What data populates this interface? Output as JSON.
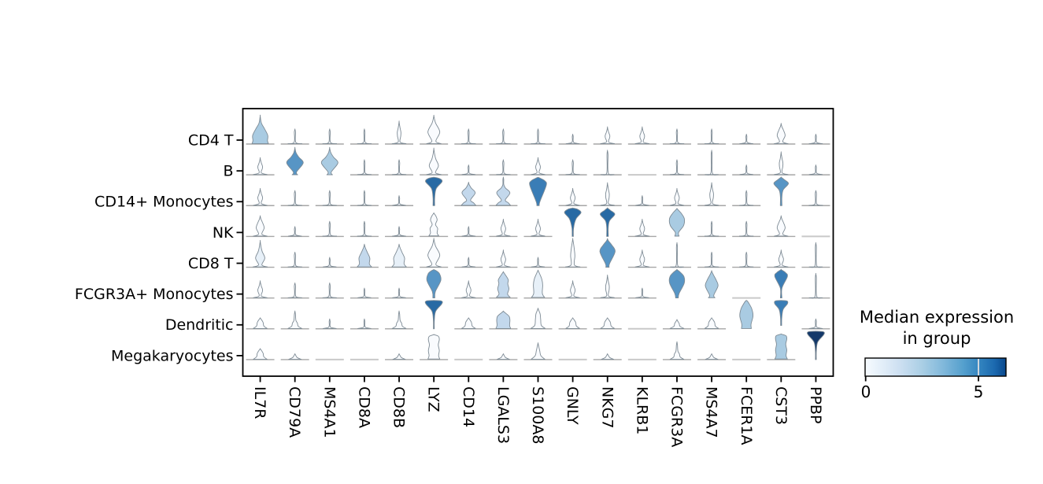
{
  "figure_title": "",
  "rows": [
    "CD4 T",
    "B",
    "CD14+ Monocytes",
    "NK",
    "CD8 T",
    "FCGR3A+ Monocytes",
    "Dendritic",
    "Megakaryocytes"
  ],
  "genes": [
    "IL7R",
    "CD79A",
    "MS4A1",
    "CD8A",
    "CD8B",
    "LYZ",
    "CD14",
    "LGALS3",
    "S100A8",
    "GNLY",
    "NKG7",
    "KLRB1",
    "FCGR3A",
    "MS4A7",
    "FCER1A",
    "CST3",
    "PPBP"
  ],
  "colorbar": {
    "title_line1": "Median expression",
    "title_line2": "in group",
    "tick_labels": [
      "0",
      "5"
    ],
    "min": 0,
    "max": 6.2,
    "shown_tick_value": 5,
    "colormap": "Blues"
  },
  "palette": {
    "L0": "#f9fbfe",
    "L1": "#e7f0f8",
    "L2": "#c3d8ec",
    "L3": "#a9cbe2",
    "L4": "#7fb2d6",
    "L5": "#5795c5",
    "L6": "#3a7db6",
    "L7": "#286aa4",
    "L8": "#14396a",
    "violin_stroke": "#7d8a94",
    "baseline_gray": "#a6a6a6",
    "flat_gray": "#c9c9c9"
  },
  "cells": [
    [
      "onionBig:3",
      "thin:0",
      "thin:0",
      "thin:0",
      "lensN:0",
      "diaW:0",
      "thin:0",
      "thin:0",
      "thin:0",
      "thinS:0",
      "lensS:0",
      "lensS:0",
      "thin:0",
      "thin:0",
      "thinS:0",
      "diaS:0",
      "thinS:0"
    ],
    [
      "lensS:0",
      "dia:5",
      "dia:3",
      "thin:0",
      "thin:0",
      "diaTallW:0",
      "thinS:0",
      "thin:0",
      "lensS:0",
      "thin:0",
      "thinT:0",
      "flat:0",
      "thin:0",
      "thinT:0",
      "thinS:0",
      "lensN:0",
      "thinS:0"
    ],
    [
      "lensS:0",
      "thin:0",
      "thin:0",
      "thin:0",
      "thinS:0",
      "fanHi:7",
      "dblDia:2",
      "dblDiaS:2",
      "fanBig:6",
      "lensS:0",
      "lensN:0",
      "thinS:0",
      "lensS:0",
      "lensN:0",
      "thin:0",
      "diaHi:5",
      "thin:0"
    ],
    [
      "diaS:0",
      "thinS:0",
      "thin:0",
      "thin:0",
      "thinS:0",
      "bubbleW:0",
      "thinS:0",
      "lensS:0",
      "lensS:0",
      "fanTail:7",
      "diaHi:7",
      "lensS:0",
      "mushroom:3",
      "thin:0",
      "thin:0",
      "diaS:0",
      "flat:0"
    ],
    [
      "diaTallW:1",
      "thin:0",
      "thinS:0",
      "onionP:2",
      "onionP:1",
      "diaW:0",
      "thinS:0",
      "lensS:0",
      "thinS:0",
      "tallNarW:0",
      "kite:5",
      "lensS:0",
      "thinT:0",
      "thin:0",
      "thin:0",
      "lensS:0",
      "thinT:0"
    ],
    [
      "lensS:0",
      "thin:0",
      "thin:0",
      "thinS:0",
      "thinS:0",
      "roundKiteHi:5",
      "lensS:0",
      "lumpy:2",
      "tallRound:1",
      "lensS:0",
      "lensN:0",
      "thinS:0",
      "fanMush:5",
      "oniDia:3",
      "flat:0",
      "diaTop:6",
      "thinT:0"
    ],
    [
      "bump:0",
      "bumpSpike:0",
      "thinS:0",
      "thinS:0",
      "bumpSpike:0",
      "funnelTop:7",
      "bump:0",
      "wideBlock:2",
      "chimney:0",
      "bump:0",
      "bump:0",
      "flat:0",
      "bumpS:0",
      "bump:0",
      "bigOnion:3",
      "funnelTopS:6",
      "thinS:0"
    ],
    [
      "bump:0",
      "tinyBump:0",
      "flat:0",
      "flat:0",
      "tinyBump:0",
      "tallBlockW:0",
      "flat:0",
      "tinyBump:0",
      "triBump:0",
      "flat:0",
      "tinyBump:0",
      "flat:0",
      "bumpSpike:0",
      "tinyBump:0",
      "flat:0",
      "tallBlock:3",
      "funnelTop:8"
    ]
  ],
  "chart_data": {
    "type": "heatmap",
    "plot_style": "stacked_violin",
    "title": "",
    "xlabel": "",
    "ylabel": "",
    "rows": [
      "CD4 T",
      "B",
      "CD14+ Monocytes",
      "NK",
      "CD8 T",
      "FCGR3A+ Monocytes",
      "Dendritic",
      "Megakaryocytes"
    ],
    "columns": [
      "IL7R",
      "CD79A",
      "MS4A1",
      "CD8A",
      "CD8B",
      "LYZ",
      "CD14",
      "LGALS3",
      "S100A8",
      "GNLY",
      "NKG7",
      "KLRB1",
      "FCGR3A",
      "MS4A7",
      "FCER1A",
      "CST3",
      "PPBP"
    ],
    "values_median_expression": [
      [
        1.7,
        0,
        0,
        0,
        0,
        0,
        0,
        0,
        0,
        0,
        0,
        0,
        0,
        0,
        0,
        0,
        0
      ],
      [
        0,
        3.2,
        1.7,
        0,
        0,
        0,
        0,
        0,
        0,
        0,
        0,
        0,
        0,
        0,
        0,
        0,
        0
      ],
      [
        0,
        0,
        0,
        0,
        0,
        4.5,
        1.1,
        1.1,
        3.9,
        0,
        0,
        0,
        0,
        0,
        0,
        3.2,
        0
      ],
      [
        0,
        0,
        0,
        0,
        0,
        0,
        0,
        0,
        0,
        4.5,
        4.5,
        0,
        1.7,
        0,
        0,
        0,
        0
      ],
      [
        0.5,
        0,
        0,
        1.1,
        0.5,
        0,
        0,
        0,
        0,
        0,
        3.2,
        0,
        0,
        0,
        0,
        0,
        0
      ],
      [
        0,
        0,
        0,
        0,
        0,
        3.2,
        0,
        1.1,
        0.5,
        0,
        0,
        0,
        3.2,
        1.7,
        0,
        3.9,
        0
      ],
      [
        0,
        0,
        0,
        0,
        0,
        4.5,
        0,
        1.1,
        0,
        0,
        0,
        0,
        0,
        0,
        1.7,
        3.9,
        0
      ],
      [
        0,
        0,
        0,
        0,
        0,
        0,
        0,
        0,
        0,
        0,
        0,
        0,
        0,
        0,
        0,
        1.7,
        6.0
      ]
    ],
    "colorbar": {
      "label": "Median expression in group",
      "ticks": [
        0,
        5
      ],
      "range": [
        0,
        6.2
      ],
      "colormap": "Blues"
    },
    "legend_position": "right-bottom",
    "grid": false
  }
}
